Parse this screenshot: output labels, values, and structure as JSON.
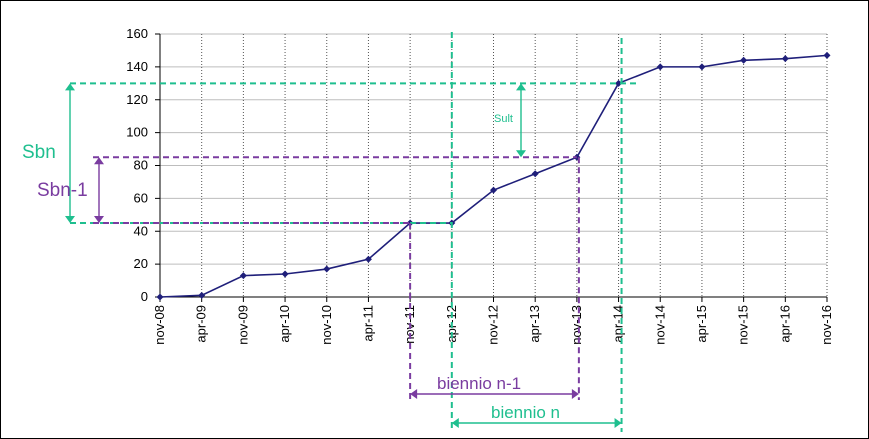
{
  "chart_data": {
    "type": "line",
    "categories": [
      "nov-08",
      "apr-09",
      "nov-09",
      "apr-10",
      "nov-10",
      "apr-11",
      "nov-11",
      "apr-12",
      "nov-12",
      "apr-13",
      "nov-13",
      "apr-14",
      "nov-14",
      "apr-15",
      "nov-15",
      "apr-16",
      "nov-16"
    ],
    "series": [
      {
        "values": [
          0,
          1,
          13,
          14,
          17,
          23,
          45,
          45,
          65,
          75,
          85,
          130,
          140,
          140,
          144,
          145,
          147
        ]
      }
    ],
    "ylim": [
      0,
      160
    ],
    "yticks": [
      0,
      20,
      40,
      60,
      80,
      100,
      120,
      140,
      160
    ],
    "grid": true,
    "colors": {
      "line": "#1f1f7a",
      "green": "#1fbf8f",
      "purple": "#7a3ca0",
      "grid": "#bdbdbd"
    },
    "annotations": {
      "sbn": "Sbn",
      "sbn_1": "Sbn-1",
      "sult": "Sult",
      "biennio_n_1": "biennio n-1",
      "biennio_n": "biennio n"
    }
  }
}
